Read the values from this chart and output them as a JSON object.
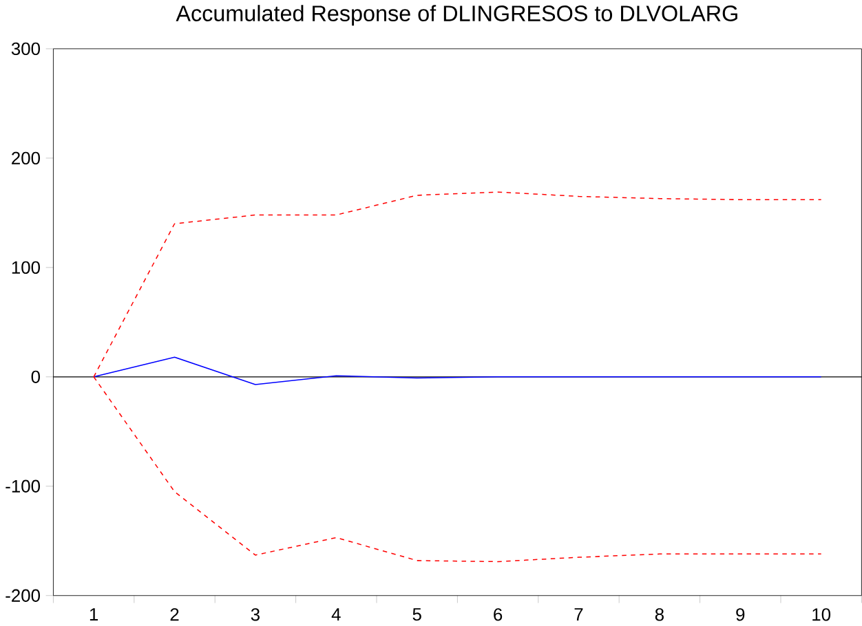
{
  "chart_data": {
    "type": "line",
    "title": "Accumulated Response of DLINGRESOS to DLVOLARG",
    "categories": [
      "1",
      "2",
      "3",
      "4",
      "5",
      "6",
      "7",
      "8",
      "9",
      "10"
    ],
    "series": [
      {
        "color": "#0000ff",
        "line_style": "solid",
        "values": [
          0,
          18,
          -7,
          1,
          -1,
          0,
          0,
          0,
          0,
          0
        ]
      },
      {
        "color": "#ff0000",
        "line_style": "dashed",
        "values": [
          0,
          140,
          148,
          148,
          166,
          169,
          165,
          163,
          162,
          162
        ]
      },
      {
        "color": "#ff0000",
        "line_style": "dashed",
        "values": [
          0,
          -105,
          -163,
          -147,
          -168,
          -169,
          -165,
          -162,
          -162,
          -162
        ]
      }
    ],
    "ylim": [
      -200,
      300
    ],
    "yticks": [
      -200,
      -100,
      0,
      100,
      200,
      300
    ],
    "ref_lines": [
      {
        "axis": "y",
        "value": 0,
        "color": "#000000"
      }
    ]
  }
}
